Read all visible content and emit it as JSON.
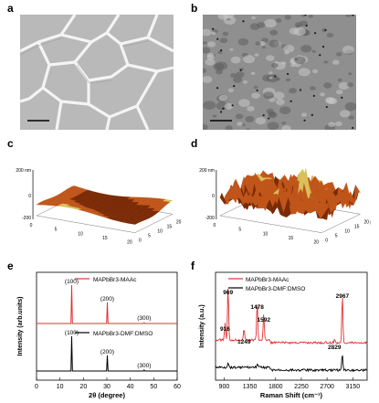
{
  "panels": {
    "a": "a",
    "b": "b",
    "c": "c",
    "d": "d",
    "e": "e",
    "f": "f"
  },
  "afm": {
    "c": {
      "z_top": "200 nm",
      "z_mid": "0",
      "z_bottom": "-200",
      "x_ticks": [
        "0",
        "5",
        "10",
        "15",
        "20 μm"
      ],
      "y_ticks": [
        "20",
        "15",
        "10",
        "5",
        "0"
      ]
    },
    "d": {
      "z_top": "200 nm",
      "z_mid": "0",
      "z_bottom": "-200",
      "x_ticks": [
        "0",
        "5",
        "10",
        "15",
        "20 μm"
      ],
      "y_ticks": [
        "20",
        "15",
        "10",
        "5",
        "0"
      ]
    }
  },
  "colors": {
    "maac": "#e03131",
    "dmf": "#000000",
    "afm_dark": "#7a2a05",
    "afm_mid": "#c0551a",
    "afm_light": "#d9c05a"
  },
  "chart_data": [
    {
      "type": "line",
      "panel": "e",
      "xlabel": "2θ (degree)",
      "ylabel": "Intensity (arb.units)",
      "xlim": [
        0,
        60
      ],
      "x_ticks": [
        0,
        10,
        20,
        30,
        40,
        50,
        60
      ],
      "series": [
        {
          "name": "MAPbBr3-MAAc",
          "peaks": [
            {
              "x": 15.0,
              "label": "(100)"
            },
            {
              "x": 30.2,
              "label": "(200)"
            },
            {
              "x": 45.9,
              "label": "(300)"
            }
          ]
        },
        {
          "name": "MAPbBr3-DMF:DMSO",
          "peaks": [
            {
              "x": 15.0,
              "label": "(100)"
            },
            {
              "x": 30.2,
              "label": "(200)"
            },
            {
              "x": 45.9,
              "label": "(300)"
            }
          ]
        }
      ],
      "peak_heights": {
        "MAPbBr3-MAAc": [
          1.0,
          0.55,
          0.02
        ],
        "MAPbBr3-DMF:DMSO": [
          1.0,
          0.45,
          0.03
        ]
      }
    },
    {
      "type": "line",
      "panel": "f",
      "xlabel": "Raman Shift (cm⁻¹)",
      "ylabel": "Intensity (a.u.)",
      "xlim": [
        750,
        3400
      ],
      "x_ticks": [
        900,
        1350,
        1800,
        2250,
        2700,
        3150
      ],
      "series": [
        {
          "name": "MAPbBr3-MAAc"
        },
        {
          "name": "MAPbBr3-DMF:DMSO"
        }
      ],
      "peak_labels": [
        {
          "x": 916,
          "label": "916"
        },
        {
          "x": 969,
          "label": "969"
        },
        {
          "x": 1249,
          "label": "1249"
        },
        {
          "x": 1478,
          "label": "1478"
        },
        {
          "x": 1592,
          "label": "1592"
        },
        {
          "x": 2829,
          "label": "2829"
        },
        {
          "x": 2967,
          "label": "2967"
        }
      ]
    }
  ]
}
